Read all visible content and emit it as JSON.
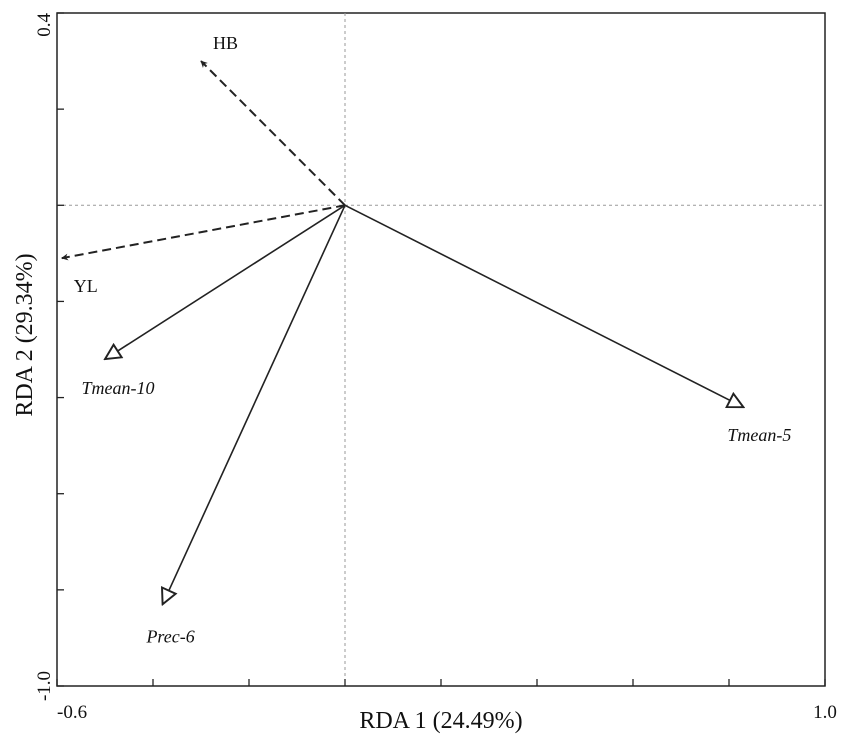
{
  "chart_data": {
    "type": "scatter",
    "subtype": "rda-biplot",
    "xlabel": "RDA 1 (24.49%)",
    "ylabel": "RDA 2 (29.34%)",
    "xlim": [
      -0.6,
      1.0
    ],
    "ylim": [
      -1.0,
      0.4
    ],
    "x_tick_labels": [
      "-0.6",
      "1.0"
    ],
    "y_tick_labels": [
      "0.4",
      "-1.0"
    ],
    "x_tick_values": [
      -0.6,
      -0.4,
      -0.2,
      0.0,
      0.2,
      0.4,
      0.6,
      0.8,
      1.0
    ],
    "y_tick_values": [
      -1.0,
      -0.8,
      -0.6,
      -0.4,
      -0.2,
      0.0,
      0.2,
      0.4
    ],
    "reference_lines": {
      "x": 0,
      "y": 0,
      "style": "dotted-gray"
    },
    "grid": false,
    "response_vectors": [
      {
        "label": "HB",
        "x": -0.3,
        "y": 0.3,
        "line": "dashed",
        "head": "filled"
      },
      {
        "label": "YL",
        "x": -0.59,
        "y": -0.11,
        "line": "dashed",
        "head": "filled"
      }
    ],
    "explanatory_vectors": [
      {
        "label": "Tmean-10",
        "x": -0.5,
        "y": -0.32,
        "line": "solid",
        "head": "open"
      },
      {
        "label": "Prec-6",
        "x": -0.38,
        "y": -0.83,
        "line": "solid",
        "head": "open"
      },
      {
        "label": "Tmean-5",
        "x": 0.83,
        "y": -0.42,
        "line": "solid",
        "head": "open"
      }
    ]
  }
}
